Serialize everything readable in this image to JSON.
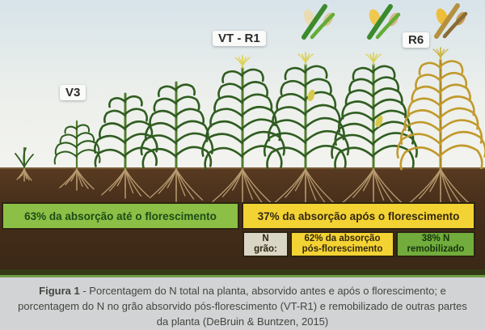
{
  "stages": [
    {
      "id": "v3",
      "label": "V3"
    },
    {
      "id": "vt-r1",
      "label": "VT - R1"
    },
    {
      "id": "r6",
      "label": "R6"
    }
  ],
  "bars": {
    "before_flowering": "63% da absorção até o florescimento",
    "after_flowering": "37% da absorção após o florescimento",
    "grain": {
      "line1": "N",
      "line2": "grão:"
    },
    "post_flowering_absorption": {
      "line1": "62% da absorção",
      "line2": "pós-florescimento"
    },
    "remobilized": {
      "line1": "38% N",
      "line2": "remobilizado"
    }
  },
  "nitrogen_data": {
    "total_plant": {
      "before_flowering_pct": 63,
      "after_flowering_pct": 37
    },
    "grain": {
      "post_flowering_absorption_pct": 62,
      "remobilized_pct": 38
    }
  },
  "caption": {
    "label": "Figura 1",
    "text": " - Porcentagem do N total na planta, absorvido antes e após o florescimento; e porcentagem do N no grão absorvido pós-florescimento (VT-R1) e remobilizado de outras partes da planta (DeBruin & Buntzen, 2015)"
  },
  "icons": [
    {
      "name": "corn-ear-early-icon"
    },
    {
      "name": "corn-ear-filling-icon"
    },
    {
      "name": "corn-ear-mature-icon"
    }
  ],
  "colors": {
    "green_bar": "#8cbf45",
    "yellow_bar": "#f3d233",
    "remobilized_green": "#72ac3c",
    "grain_gray": "#dad6c6",
    "soil_brown": "#472f1b",
    "dark_band": "#333a13",
    "caption_bg": "#d2d3d5"
  }
}
